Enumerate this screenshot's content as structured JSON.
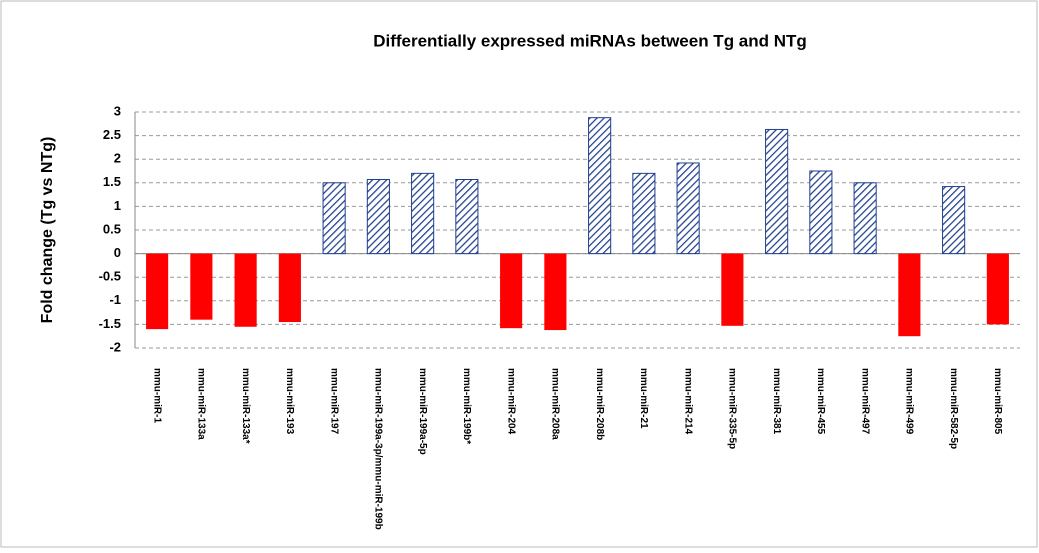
{
  "chart_data": {
    "type": "bar",
    "title": "Differentially expressed miRNAs between Tg and NTg",
    "y_label": "Fold change (Tg vs NTg)",
    "categories": [
      "mmu-miR-1",
      "mmu-miR-133a",
      "mmu-miR-133a*",
      "mmu-miR-193",
      "mmu-miR-197",
      "mmu-miR-199a-3p/mmu-miR-199b",
      "mmu-miR-199a-5p",
      "mmu-miR-199b*",
      "mmu-miR-204",
      "mmu-miR-208a",
      "mmu-miR-208b",
      "mmu-miR-21",
      "mmu-miR-214",
      "mmu-miR-335-5p",
      "mmu-miR-381",
      "mmu-miR-455",
      "mmu-miR-497",
      "mmu-miR-499",
      "mmu-miR-582-5p",
      "mmu-miR-805"
    ],
    "values": [
      -1.6,
      -1.4,
      -1.55,
      -1.45,
      1.5,
      1.57,
      1.7,
      1.57,
      -1.58,
      -1.62,
      2.88,
      1.7,
      1.92,
      -1.53,
      2.63,
      1.75,
      1.5,
      -1.75,
      1.42,
      -1.5
    ],
    "positive_color": "#1f3f8f",
    "negative_color": "#ff0000",
    "ylim": [
      -2,
      3
    ],
    "yticks": [
      -2,
      -1.5,
      -1,
      -0.5,
      0,
      0.5,
      1,
      1.5,
      2,
      2.5,
      3
    ],
    "grid": true
  }
}
